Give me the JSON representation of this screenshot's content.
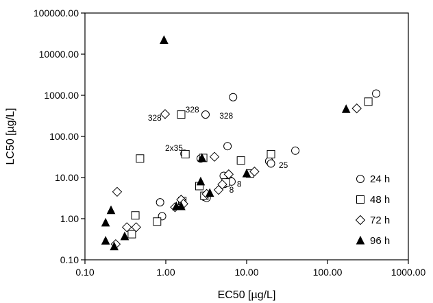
{
  "chart_data": {
    "type": "scatter",
    "xlabel": "EC50 [µg/L]",
    "ylabel": "LC50 [µg/L]",
    "x_scale": "log",
    "y_scale": "log",
    "xlim": [
      0.1,
      1000
    ],
    "ylim": [
      0.1,
      100000
    ],
    "x_tick_values": [
      0.1,
      1,
      10,
      100,
      1000
    ],
    "x_tick_labels": [
      "0.10",
      "1.00",
      "10.00",
      "100.00",
      "1000.00"
    ],
    "y_tick_values": [
      0.1,
      1,
      10,
      100,
      1000,
      10000,
      100000
    ],
    "y_tick_labels": [
      "0.10",
      "1.00",
      "10.00",
      "100.00",
      "1000.00",
      "10000.00",
      "100000.00"
    ],
    "grid": false,
    "legend_position": "bottom-right",
    "series": [
      {
        "name": "24 h",
        "marker": "circle",
        "points": [
          [
            6.8,
            900
          ],
          [
            400,
            1100
          ],
          [
            3.1,
            340
          ],
          [
            5.8,
            58
          ],
          [
            40,
            45
          ],
          [
            19,
            25
          ],
          [
            20,
            22
          ],
          [
            0.85,
            2.5
          ],
          [
            0.9,
            1.15
          ],
          [
            5.2,
            11
          ],
          [
            5.3,
            7.0
          ],
          [
            6.2,
            8.5
          ],
          [
            6.5,
            8.0
          ],
          [
            3.0,
            3.4
          ],
          [
            3.2,
            3.2
          ],
          [
            1.7,
            38
          ],
          [
            2.7,
            29
          ]
        ]
      },
      {
        "name": "48 h",
        "marker": "square",
        "points": [
          [
            1.55,
            340
          ],
          [
            1.75,
            37
          ],
          [
            0.48,
            29
          ],
          [
            2.6,
            6.2
          ],
          [
            8.5,
            26
          ],
          [
            20,
            37
          ],
          [
            320,
            700
          ],
          [
            1.6,
            2.7
          ],
          [
            0.42,
            1.2
          ],
          [
            0.78,
            0.85
          ],
          [
            0.38,
            0.42
          ],
          [
            11,
            12.5
          ],
          [
            3.0,
            3.6
          ],
          [
            2.9,
            30
          ],
          [
            5.5,
            7.6
          ]
        ]
      },
      {
        "name": "72 h",
        "marker": "diamond",
        "points": [
          [
            0.98,
            350
          ],
          [
            4.0,
            32
          ],
          [
            0.25,
            4.5
          ],
          [
            0.33,
            0.62
          ],
          [
            0.43,
            0.62
          ],
          [
            1.3,
            1.9
          ],
          [
            1.55,
            2.9
          ],
          [
            1.65,
            2.3
          ],
          [
            4.5,
            5.0
          ],
          [
            5.0,
            6.8
          ],
          [
            6.0,
            12
          ],
          [
            12.5,
            14
          ],
          [
            230,
            480
          ],
          [
            0.24,
            0.24
          ],
          [
            3.2,
            4.0
          ]
        ]
      },
      {
        "name": "96 h",
        "marker": "triangle",
        "points": [
          [
            0.95,
            22000
          ],
          [
            0.18,
            0.8
          ],
          [
            0.21,
            1.6
          ],
          [
            0.18,
            0.29
          ],
          [
            0.31,
            0.37
          ],
          [
            0.23,
            0.21
          ],
          [
            2.8,
            30
          ],
          [
            2.7,
            8.0
          ],
          [
            3.5,
            4.2
          ],
          [
            1.55,
            2.0
          ],
          [
            1.35,
            2.0
          ],
          [
            10,
            12.5
          ],
          [
            170,
            460
          ]
        ]
      }
    ],
    "annotations": [
      {
        "text": "328",
        "x": 1.75,
        "y": 380
      },
      {
        "text": "328",
        "x": 4.6,
        "y": 270
      },
      {
        "text": "328",
        "x": 0.6,
        "y": 240
      },
      {
        "text": "2x35",
        "x": 0.98,
        "y": 45
      },
      {
        "text": "25",
        "x": 25,
        "y": 17
      },
      {
        "text": "8",
        "x": 7.6,
        "y": 6.0
      },
      {
        "text": "8",
        "x": 6.1,
        "y": 4.3
      }
    ]
  }
}
